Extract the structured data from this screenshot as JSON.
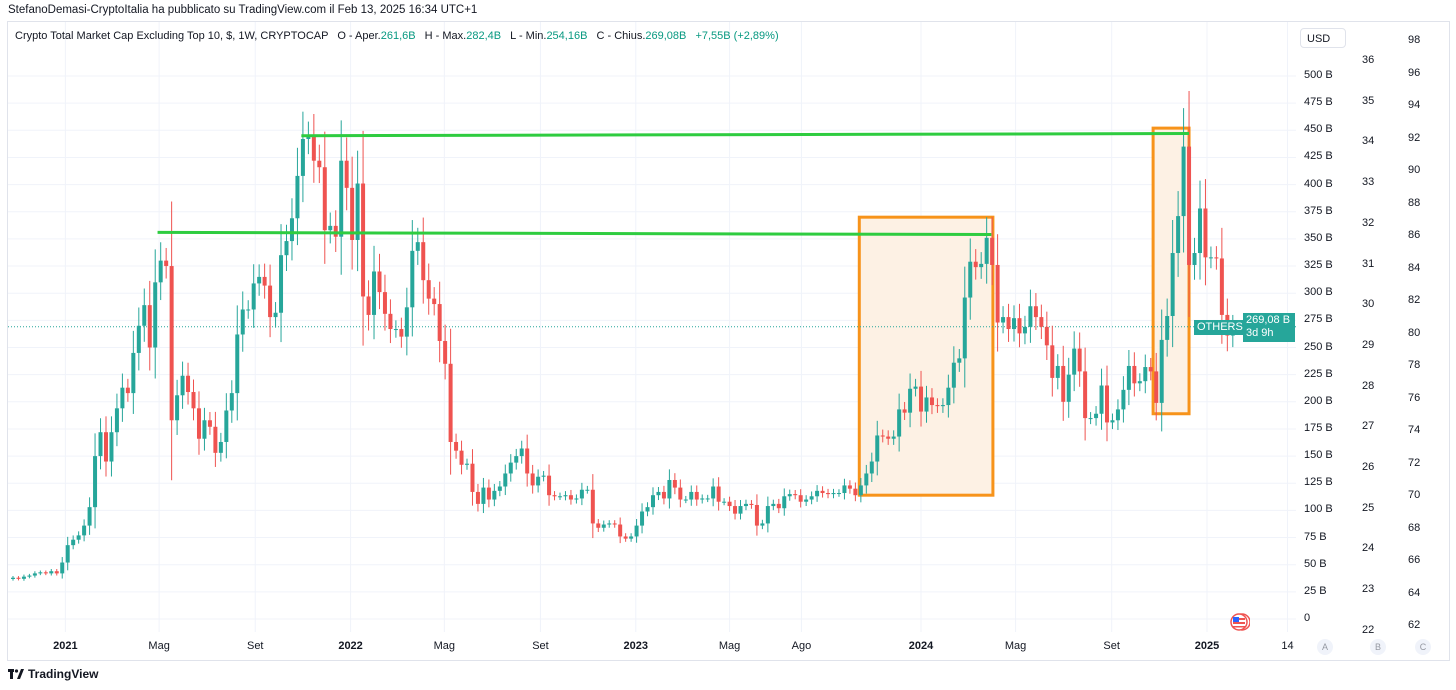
{
  "publish_line": "StefanoDemasi-CryptoItalia ha pubblicato su TradingView.com il Feb 13, 2025 16:34 UTC+1",
  "legend": {
    "symbol": "Crypto Total Market Cap Excluding Top 10, $, 1W, CRYPTOCAP",
    "open_label": "O - Aper.",
    "open": "261,6B",
    "high_label": "H - Max.",
    "high": "282,4B",
    "low_label": "L - Min.",
    "low": "254,16B",
    "close_label": "C - Chius.",
    "close": "269,08B",
    "change": "+7,55B (+2,89%)"
  },
  "currency_button": "USD",
  "price_axis": [
    "500 B",
    "475 B",
    "450 B",
    "425 B",
    "400 B",
    "375 B",
    "350 B",
    "325 B",
    "300 B",
    "275 B",
    "250 B",
    "225 B",
    "200 B",
    "175 B",
    "150 B",
    "125 B",
    "100 B",
    "75 B",
    "50 B",
    "25 B",
    "0"
  ],
  "scale_b": [
    "36",
    "35",
    "34",
    "33",
    "32",
    "31",
    "30",
    "29",
    "28",
    "27",
    "26",
    "25",
    "24",
    "23",
    "22"
  ],
  "scale_c": [
    "98",
    "96",
    "94",
    "92",
    "90",
    "88",
    "86",
    "84",
    "82",
    "80",
    "78",
    "76",
    "74",
    "72",
    "70",
    "68",
    "66",
    "64",
    "62"
  ],
  "time_axis": [
    {
      "label": "2021",
      "date": "2021-01-01",
      "year": true
    },
    {
      "label": "Mag",
      "date": "2021-05-01"
    },
    {
      "label": "Set",
      "date": "2021-09-01"
    },
    {
      "label": "2022",
      "date": "2022-01-01",
      "year": true
    },
    {
      "label": "Mag",
      "date": "2022-05-01"
    },
    {
      "label": "Set",
      "date": "2022-09-01"
    },
    {
      "label": "2023",
      "date": "2023-01-01",
      "year": true
    },
    {
      "label": "Mag",
      "date": "2023-05-01"
    },
    {
      "label": "Ago",
      "date": "2023-08-01"
    },
    {
      "label": "2024",
      "date": "2024-01-01",
      "year": true
    },
    {
      "label": "Mag",
      "date": "2024-05-01"
    },
    {
      "label": "Set",
      "date": "2024-09-01"
    },
    {
      "label": "2025",
      "date": "2025-01-01",
      "year": true
    },
    {
      "label": "14",
      "date": "2025-04-14"
    }
  ],
  "scale_buttons": [
    "A",
    "B",
    "C"
  ],
  "last_price": {
    "symbol_tag": "OTHERS",
    "price": "269,08 B",
    "countdown": "3d 9h",
    "value": 269.08
  },
  "footer_logo": "TradingView",
  "colors": {
    "up": "#26a69a",
    "down": "#ef5350",
    "trendline": "#2ecc40",
    "box_stroke": "#f7931a",
    "box_fill": "#fdf1e4",
    "grid": "#f0f3fa"
  },
  "chart_data": {
    "type": "candlestick",
    "interval": "1W",
    "first_week": "2020-10-26",
    "unit": "B USD",
    "ylim": [
      0,
      510
    ],
    "grid": true,
    "closes": [
      38,
      37,
      39,
      40,
      42,
      43,
      42,
      44,
      42,
      52,
      68,
      73,
      77,
      86,
      103,
      150,
      172,
      145,
      172,
      194,
      213,
      208,
      245,
      270,
      289,
      250,
      310,
      330,
      325,
      183,
      206,
      224,
      209,
      194,
      166,
      183,
      177,
      153,
      163,
      192,
      208,
      262,
      285,
      285,
      309,
      315,
      307,
      278,
      282,
      335,
      348,
      369,
      408,
      442,
      444,
      422,
      416,
      358,
      362,
      352,
      422,
      397,
      349,
      401,
      297,
      280,
      320,
      301,
      281,
      267,
      267,
      260,
      287,
      339,
      347,
      312,
      295,
      290,
      256,
      235,
      163,
      155,
      142,
      143,
      117,
      106,
      121,
      110,
      118,
      122,
      134,
      144,
      150,
      157,
      134,
      123,
      131,
      132,
      114,
      113,
      113,
      114,
      110,
      111,
      119,
      119,
      88,
      84,
      87,
      88,
      87,
      76,
      74,
      76,
      86,
      99,
      103,
      114,
      117,
      111,
      128,
      121,
      110,
      110,
      117,
      110,
      111,
      111,
      122,
      108,
      108,
      104,
      97,
      104,
      106,
      105,
      86,
      88,
      104,
      106,
      102,
      113,
      115,
      114,
      108,
      110,
      113,
      118,
      116,
      115,
      116,
      116,
      123,
      120,
      114,
      123,
      134,
      145,
      169,
      168,
      166,
      168,
      193,
      190,
      212,
      214,
      191,
      204,
      197,
      196,
      197,
      213,
      236,
      240,
      296,
      329,
      324,
      327,
      351,
      326,
      273,
      278,
      267,
      277,
      263,
      269,
      288,
      278,
      269,
      252,
      222,
      233,
      200,
      225,
      249,
      228,
      185,
      185,
      189,
      215,
      181,
      183,
      193,
      211,
      233,
      217,
      219,
      232,
      228,
      199,
      257,
      279,
      337,
      371,
      435,
      326,
      337,
      378,
      333,
      333,
      332,
      280,
      261,
      269.08
    ],
    "annotations": [
      {
        "type": "hline",
        "start": "2021-10-30",
        "end": "2024-12-09",
        "value_start": 445,
        "value_end": 447
      },
      {
        "type": "hline",
        "start": "2021-04-29",
        "end": "2024-03-31",
        "value_start": 356,
        "value_end": 354
      },
      {
        "type": "box",
        "start": "2023-10-14",
        "end": "2024-04-02",
        "top": 370,
        "bottom": 114
      },
      {
        "type": "box",
        "start": "2024-10-24",
        "end": "2024-12-09",
        "top": 452,
        "bottom": 189
      }
    ]
  }
}
